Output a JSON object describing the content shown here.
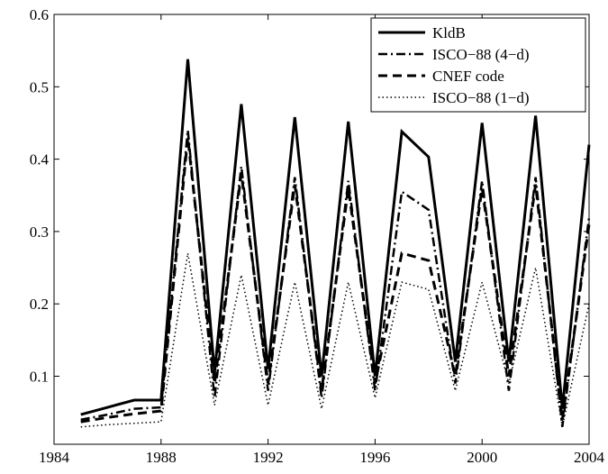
{
  "chart_data": {
    "type": "line",
    "x": [
      1985,
      1986,
      1987,
      1988,
      1989,
      1990,
      1991,
      1992,
      1993,
      1994,
      1995,
      1996,
      1997,
      1998,
      1999,
      2000,
      2001,
      2002,
      2003,
      2004
    ],
    "series": [
      {
        "name": "KldB",
        "color": "#000000",
        "dash": "solid",
        "width": 3,
        "values": [
          0.047,
          0.057,
          0.067,
          0.067,
          0.538,
          0.105,
          0.476,
          0.11,
          0.458,
          0.1,
          0.452,
          0.1,
          0.438,
          0.403,
          0.12,
          0.45,
          0.12,
          0.46,
          0.055,
          0.42
        ]
      },
      {
        "name": "ISCO−88 (4−d)",
        "color": "#000000",
        "dash": "dashdot",
        "width": 2.5,
        "values": [
          0.04,
          0.047,
          0.055,
          0.057,
          0.44,
          0.07,
          0.39,
          0.08,
          0.375,
          0.07,
          0.37,
          0.08,
          0.355,
          0.33,
          0.09,
          0.37,
          0.08,
          0.375,
          0.03,
          0.32
        ]
      },
      {
        "name": "CNEF code",
        "color": "#000000",
        "dash": "dashed",
        "width": 3,
        "values": [
          0.037,
          0.043,
          0.048,
          0.052,
          0.43,
          0.09,
          0.38,
          0.09,
          0.365,
          0.08,
          0.36,
          0.09,
          0.27,
          0.26,
          0.1,
          0.36,
          0.1,
          0.365,
          0.04,
          0.31
        ]
      },
      {
        "name": "ISCO−88 (1−d)",
        "color": "#000000",
        "dash": "dotted",
        "width": 1.5,
        "values": [
          0.03,
          0.033,
          0.035,
          0.037,
          0.27,
          0.06,
          0.24,
          0.06,
          0.23,
          0.055,
          0.23,
          0.07,
          0.23,
          0.22,
          0.08,
          0.23,
          0.09,
          0.25,
          0.03,
          0.2
        ]
      }
    ],
    "xlim": [
      1984,
      2004
    ],
    "xticks": [
      1984,
      1988,
      1992,
      1996,
      2000,
      2004
    ],
    "ylim": [
      0.006,
      0.6
    ],
    "yticks": [
      0.1,
      0.2,
      0.3,
      0.4,
      0.5,
      0.6
    ],
    "legend": "upper right"
  }
}
